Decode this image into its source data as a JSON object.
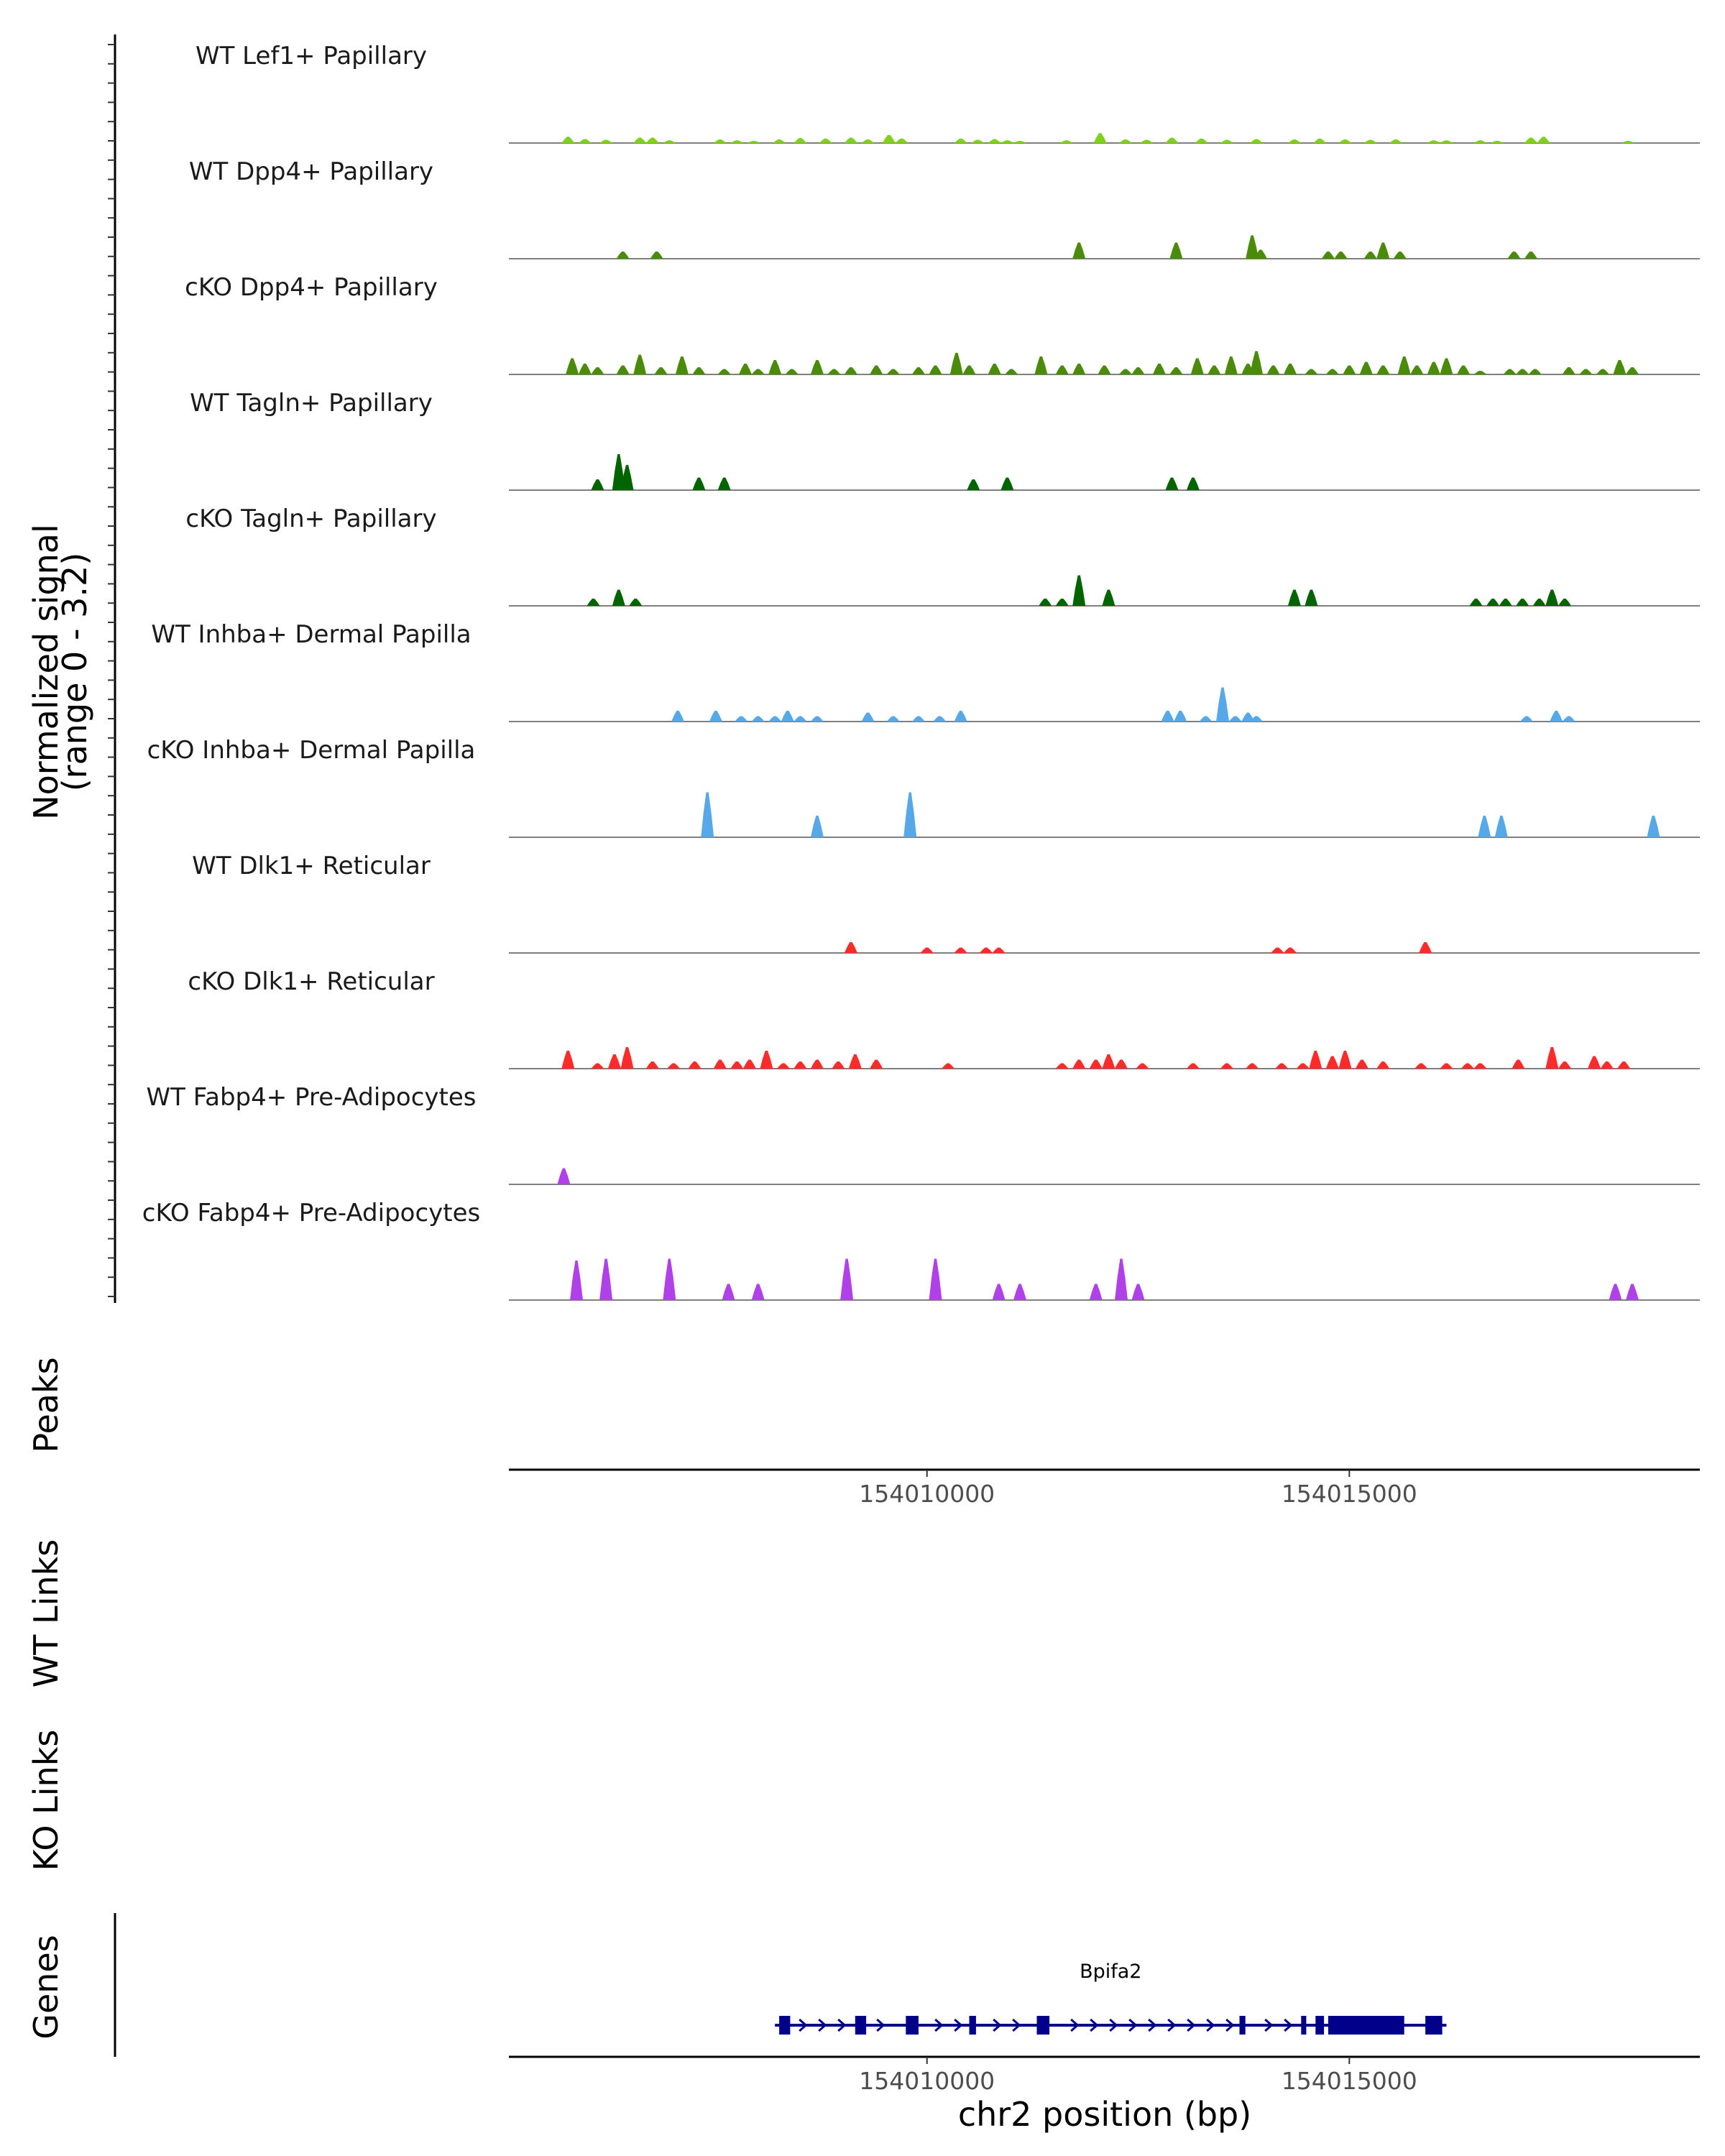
{
  "chart_data": {
    "type": "area",
    "chromosome": "chr2",
    "x_range": [
      154005050,
      154019150
    ],
    "signal_ylabel": [
      "Normalized signal",
      "(range 0 - 3.2)"
    ],
    "signal_range": [
      0,
      3.2
    ],
    "xlabel": "chr2 position (bp)",
    "x_ticks": [
      154010000,
      154015000
    ],
    "x_tick_labels": [
      "154010000",
      "154015000"
    ],
    "panel_titles": {
      "peaks": "Peaks",
      "wt_links": "WT Links",
      "ko_links": "KO Links",
      "genes": "Genes"
    },
    "tracks": [
      {
        "name": "WT Lef1+ Papillary",
        "color": "#7fd11f",
        "peaks": [
          [
            154005750,
            0.35
          ],
          [
            154005950,
            0.22
          ],
          [
            154006200,
            0.18
          ],
          [
            154006600,
            0.3
          ],
          [
            154006750,
            0.3
          ],
          [
            154006950,
            0.15
          ],
          [
            154007550,
            0.2
          ],
          [
            154007750,
            0.15
          ],
          [
            154007950,
            0.12
          ],
          [
            154008250,
            0.2
          ],
          [
            154008500,
            0.28
          ],
          [
            154008800,
            0.25
          ],
          [
            154009100,
            0.3
          ],
          [
            154009300,
            0.2
          ],
          [
            154009550,
            0.45
          ],
          [
            154009700,
            0.25
          ],
          [
            154010400,
            0.25
          ],
          [
            154010600,
            0.18
          ],
          [
            154010800,
            0.22
          ],
          [
            154010950,
            0.15
          ],
          [
            154011100,
            0.12
          ],
          [
            154011650,
            0.15
          ],
          [
            154012050,
            0.55
          ],
          [
            154012350,
            0.2
          ],
          [
            154012600,
            0.18
          ],
          [
            154012900,
            0.3
          ],
          [
            154013250,
            0.25
          ],
          [
            154013550,
            0.18
          ],
          [
            154013900,
            0.22
          ],
          [
            154014350,
            0.2
          ],
          [
            154014650,
            0.25
          ],
          [
            154014950,
            0.2
          ],
          [
            154015250,
            0.18
          ],
          [
            154015550,
            0.2
          ],
          [
            154016000,
            0.15
          ],
          [
            154016150,
            0.15
          ],
          [
            154016550,
            0.15
          ],
          [
            154016750,
            0.12
          ],
          [
            154017150,
            0.3
          ],
          [
            154017300,
            0.35
          ],
          [
            154018300,
            0.12
          ]
        ]
      },
      {
        "name": "WT Dpp4+ Papillary",
        "color": "#4b8b0a",
        "peaks": [
          [
            154006400,
            0.4
          ],
          [
            154006800,
            0.4
          ],
          [
            154011800,
            0.9
          ],
          [
            154012950,
            0.9
          ],
          [
            154013850,
            1.3
          ],
          [
            154013950,
            0.5
          ],
          [
            154014750,
            0.4
          ],
          [
            154014900,
            0.4
          ],
          [
            154015250,
            0.4
          ],
          [
            154015400,
            0.9
          ],
          [
            154015600,
            0.4
          ],
          [
            154016950,
            0.4
          ],
          [
            154017150,
            0.4
          ]
        ]
      },
      {
        "name": "cKO Dpp4+ Papillary",
        "color": "#4b8b0a",
        "peaks": [
          [
            154005800,
            0.9
          ],
          [
            154005950,
            0.6
          ],
          [
            154006100,
            0.4
          ],
          [
            154006400,
            0.5
          ],
          [
            154006600,
            1.1
          ],
          [
            154006850,
            0.4
          ],
          [
            154007100,
            1.0
          ],
          [
            154007300,
            0.4
          ],
          [
            154007600,
            0.3
          ],
          [
            154007850,
            0.6
          ],
          [
            154008000,
            0.3
          ],
          [
            154008200,
            0.8
          ],
          [
            154008400,
            0.3
          ],
          [
            154008700,
            0.8
          ],
          [
            154008900,
            0.3
          ],
          [
            154009100,
            0.4
          ],
          [
            154009400,
            0.5
          ],
          [
            154009600,
            0.3
          ],
          [
            154009900,
            0.4
          ],
          [
            154010100,
            0.5
          ],
          [
            154010350,
            1.2
          ],
          [
            154010500,
            0.5
          ],
          [
            154010800,
            0.6
          ],
          [
            154011000,
            0.3
          ],
          [
            154011350,
            1.0
          ],
          [
            154011600,
            0.5
          ],
          [
            154011800,
            0.6
          ],
          [
            154012100,
            0.5
          ],
          [
            154012350,
            0.3
          ],
          [
            154012500,
            0.4
          ],
          [
            154012750,
            0.6
          ],
          [
            154012950,
            0.4
          ],
          [
            154013200,
            0.9
          ],
          [
            154013400,
            0.5
          ],
          [
            154013600,
            1.0
          ],
          [
            154013800,
            0.6
          ],
          [
            154013900,
            1.3
          ],
          [
            154014100,
            0.5
          ],
          [
            154014300,
            0.6
          ],
          [
            154014550,
            0.3
          ],
          [
            154014800,
            0.3
          ],
          [
            154015000,
            0.5
          ],
          [
            154015200,
            0.7
          ],
          [
            154015400,
            0.5
          ],
          [
            154015650,
            1.0
          ],
          [
            154015800,
            0.5
          ],
          [
            154016000,
            0.7
          ],
          [
            154016150,
            0.9
          ],
          [
            154016350,
            0.5
          ],
          [
            154016550,
            0.2
          ],
          [
            154016900,
            0.3
          ],
          [
            154017050,
            0.3
          ],
          [
            154017200,
            0.3
          ],
          [
            154017600,
            0.4
          ],
          [
            154017800,
            0.3
          ],
          [
            154018000,
            0.3
          ],
          [
            154018200,
            0.8
          ],
          [
            154018350,
            0.4
          ]
        ]
      },
      {
        "name": "WT Tagln+ Papillary",
        "color": "#006400",
        "peaks": [
          [
            154006100,
            0.6
          ],
          [
            154006350,
            2.0
          ],
          [
            154006450,
            1.4
          ],
          [
            154007300,
            0.7
          ],
          [
            154007600,
            0.7
          ],
          [
            154010550,
            0.6
          ],
          [
            154010950,
            0.7
          ],
          [
            154012900,
            0.7
          ],
          [
            154013150,
            0.7
          ]
        ]
      },
      {
        "name": "cKO Tagln+ Papillary",
        "color": "#006400",
        "peaks": [
          [
            154006050,
            0.4
          ],
          [
            154006350,
            0.9
          ],
          [
            154006550,
            0.4
          ],
          [
            154011400,
            0.4
          ],
          [
            154011600,
            0.4
          ],
          [
            154011800,
            1.7
          ],
          [
            154012150,
            0.9
          ],
          [
            154014350,
            0.9
          ],
          [
            154014550,
            0.9
          ],
          [
            154016500,
            0.4
          ],
          [
            154016700,
            0.4
          ],
          [
            154016850,
            0.4
          ],
          [
            154017050,
            0.4
          ],
          [
            154017250,
            0.4
          ],
          [
            154017400,
            0.9
          ],
          [
            154017550,
            0.4
          ]
        ]
      },
      {
        "name": "WT Inhba+ Dermal Papilla",
        "color": "#56a8e8",
        "peaks": [
          [
            154007050,
            0.6
          ],
          [
            154007500,
            0.6
          ],
          [
            154007800,
            0.3
          ],
          [
            154008000,
            0.3
          ],
          [
            154008200,
            0.3
          ],
          [
            154008350,
            0.6
          ],
          [
            154008500,
            0.3
          ],
          [
            154008700,
            0.3
          ],
          [
            154009300,
            0.5
          ],
          [
            154009600,
            0.3
          ],
          [
            154009900,
            0.3
          ],
          [
            154010150,
            0.3
          ],
          [
            154010400,
            0.6
          ],
          [
            154012850,
            0.6
          ],
          [
            154013000,
            0.6
          ],
          [
            154013300,
            0.3
          ],
          [
            154013500,
            1.9
          ],
          [
            154013650,
            0.3
          ],
          [
            154013800,
            0.5
          ],
          [
            154013900,
            0.3
          ],
          [
            154017100,
            0.3
          ],
          [
            154017450,
            0.6
          ],
          [
            154017600,
            0.3
          ]
        ]
      },
      {
        "name": "cKO Inhba+ Dermal Papilla",
        "color": "#56a8e8",
        "peaks": [
          [
            154007400,
            2.5
          ],
          [
            154008700,
            1.2
          ],
          [
            154009800,
            2.5
          ],
          [
            154016600,
            1.2
          ],
          [
            154016800,
            1.2
          ],
          [
            154018600,
            1.2
          ]
        ]
      },
      {
        "name": "WT Dlk1+ Reticular",
        "color": "#ff2a2a",
        "peaks": [
          [
            154009100,
            0.6
          ],
          [
            154010000,
            0.3
          ],
          [
            154010400,
            0.3
          ],
          [
            154010700,
            0.3
          ],
          [
            154010850,
            0.3
          ],
          [
            154014150,
            0.3
          ],
          [
            154014300,
            0.3
          ],
          [
            154015900,
            0.6
          ]
        ]
      },
      {
        "name": "cKO Dlk1+ Reticular",
        "color": "#ff2a2a",
        "peaks": [
          [
            154005750,
            1.0
          ],
          [
            154006100,
            0.3
          ],
          [
            154006300,
            0.8
          ],
          [
            154006450,
            1.2
          ],
          [
            154006750,
            0.4
          ],
          [
            154007000,
            0.3
          ],
          [
            154007250,
            0.4
          ],
          [
            154007550,
            0.5
          ],
          [
            154007750,
            0.4
          ],
          [
            154007900,
            0.5
          ],
          [
            154008100,
            1.0
          ],
          [
            154008300,
            0.3
          ],
          [
            154008500,
            0.4
          ],
          [
            154008700,
            0.5
          ],
          [
            154008950,
            0.4
          ],
          [
            154009150,
            0.8
          ],
          [
            154009400,
            0.5
          ],
          [
            154010250,
            0.3
          ],
          [
            154011600,
            0.3
          ],
          [
            154011800,
            0.5
          ],
          [
            154012000,
            0.5
          ],
          [
            154012150,
            0.8
          ],
          [
            154012300,
            0.5
          ],
          [
            154012550,
            0.3
          ],
          [
            154013150,
            0.3
          ],
          [
            154013550,
            0.3
          ],
          [
            154013850,
            0.3
          ],
          [
            154014200,
            0.3
          ],
          [
            154014450,
            0.3
          ],
          [
            154014600,
            1.0
          ],
          [
            154014800,
            0.7
          ],
          [
            154014950,
            1.0
          ],
          [
            154015150,
            0.5
          ],
          [
            154015400,
            0.4
          ],
          [
            154015850,
            0.3
          ],
          [
            154016150,
            0.3
          ],
          [
            154016400,
            0.3
          ],
          [
            154016550,
            0.3
          ],
          [
            154017000,
            0.5
          ],
          [
            154017400,
            1.2
          ],
          [
            154017550,
            0.4
          ],
          [
            154017900,
            0.7
          ],
          [
            154018050,
            0.4
          ],
          [
            154018250,
            0.4
          ]
        ]
      },
      {
        "name": "WT Fabp4+ Pre-Adipocytes",
        "color": "#b040e8",
        "peaks": [
          [
            154005700,
            0.9
          ]
        ]
      },
      {
        "name": "cKO Fabp4+ Pre-Adipocytes",
        "color": "#b040e8",
        "peaks": [
          [
            154005850,
            2.2
          ],
          [
            154006200,
            2.3
          ],
          [
            154006950,
            2.3
          ],
          [
            154007650,
            0.9
          ],
          [
            154008000,
            0.9
          ],
          [
            154009050,
            2.3
          ],
          [
            154010100,
            2.3
          ],
          [
            154010850,
            0.9
          ],
          [
            154011100,
            0.9
          ],
          [
            154012000,
            0.9
          ],
          [
            154012300,
            2.3
          ],
          [
            154012500,
            0.9
          ],
          [
            154018150,
            0.9
          ],
          [
            154018350,
            0.9
          ]
        ]
      }
    ],
    "gene": {
      "name": "Bpifa2",
      "color": "#00008b",
      "start": 154008200,
      "end": 154016150,
      "strand": "+",
      "exons": [
        [
          154008250,
          154008380
        ],
        [
          154009150,
          154009280
        ],
        [
          154009750,
          154009900
        ],
        [
          154010500,
          154010580
        ],
        [
          154011300,
          154011450
        ],
        [
          154013700,
          154013770
        ],
        [
          154014430,
          154014490
        ],
        [
          154014600,
          154014700
        ],
        [
          154014750,
          154015650
        ],
        [
          154015900,
          154016100
        ]
      ]
    }
  }
}
